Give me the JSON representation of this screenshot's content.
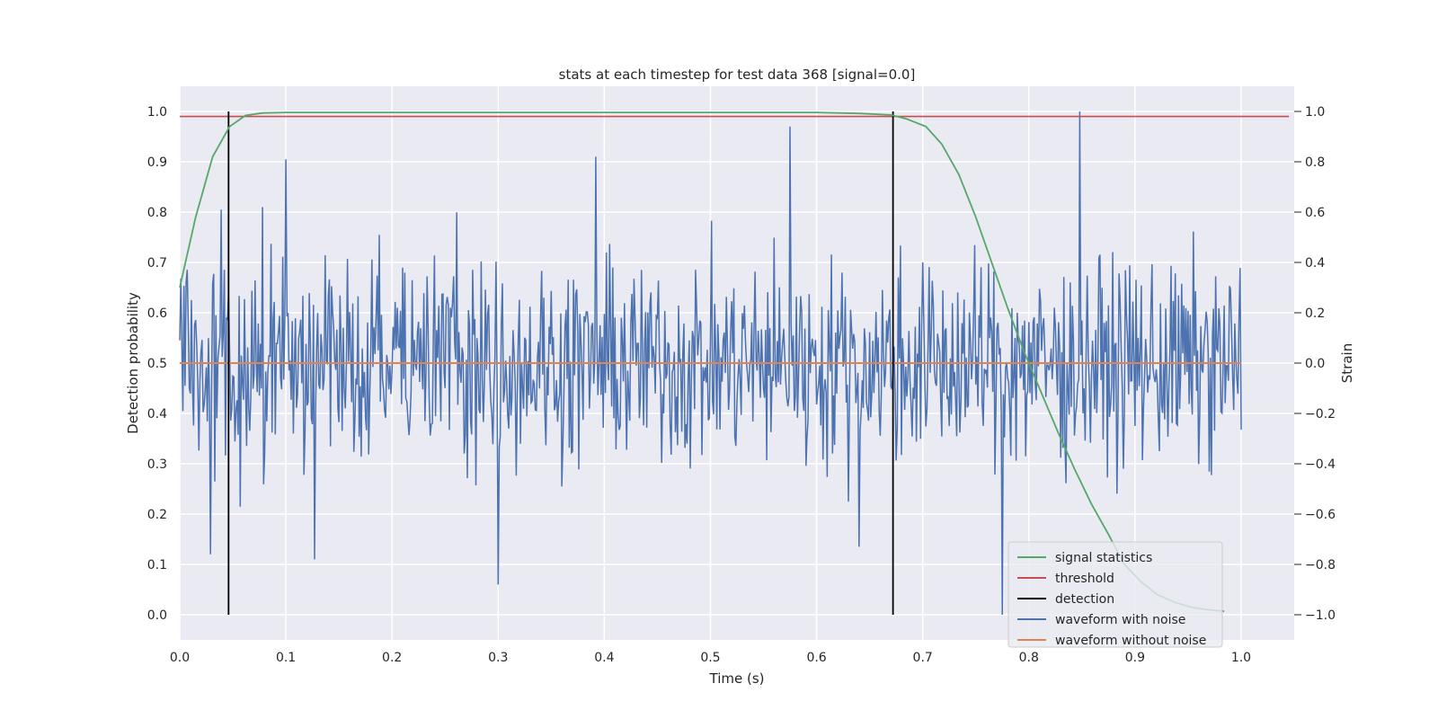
{
  "chart_data": {
    "type": "line",
    "title": "stats at each timestep for test data 368 [signal=0.0]",
    "xlabel": "Time (s)",
    "ylabel_left": "Detection probability",
    "ylabel_right": "Strain",
    "xlim": [
      0.0,
      1.05
    ],
    "ylim_left": [
      -0.05,
      1.05
    ],
    "ylim_right": [
      -1.1,
      1.1
    ],
    "xticks": [
      "0.0",
      "0.1",
      "0.2",
      "0.3",
      "0.4",
      "0.5",
      "0.6",
      "0.7",
      "0.8",
      "0.9",
      "1.0"
    ],
    "yticks_left": [
      "0.0",
      "0.1",
      "0.2",
      "0.3",
      "0.4",
      "0.5",
      "0.6",
      "0.7",
      "0.8",
      "0.9",
      "1.0"
    ],
    "yticks_right": [
      "−1.0",
      "−0.8",
      "−0.6",
      "−0.4",
      "−0.2",
      "0.0",
      "0.2",
      "0.4",
      "0.6",
      "0.8",
      "1.0"
    ],
    "grid": true,
    "background": "#eaeaf2",
    "legend_position": "lower-right",
    "signal_statistics": {
      "name": "signal statistics",
      "color": "#55a868",
      "axis": "left",
      "x": [
        0.0,
        0.015,
        0.031,
        0.047,
        0.062,
        0.078,
        0.1,
        0.2,
        0.3,
        0.4,
        0.5,
        0.6,
        0.64,
        0.67,
        0.685,
        0.703,
        0.718,
        0.734,
        0.75,
        0.765,
        0.78,
        0.796,
        0.812,
        0.828,
        0.843,
        0.859,
        0.875,
        0.89,
        0.906,
        0.921,
        0.937,
        0.953,
        0.968,
        0.984
      ],
      "values": [
        0.65,
        0.79,
        0.91,
        0.97,
        0.992,
        0.997,
        0.998,
        0.998,
        0.998,
        0.998,
        0.998,
        0.998,
        0.996,
        0.993,
        0.985,
        0.97,
        0.935,
        0.875,
        0.79,
        0.7,
        0.61,
        0.52,
        0.44,
        0.36,
        0.29,
        0.22,
        0.16,
        0.1,
        0.065,
        0.04,
        0.025,
        0.015,
        0.01,
        0.007
      ]
    },
    "threshold": {
      "name": "threshold",
      "color": "#c44e52",
      "axis": "left",
      "value": 0.99,
      "x_range": [
        0.0,
        1.045
      ]
    },
    "detection": {
      "name": "detection",
      "color": "#000000",
      "axis": "left",
      "x": [
        0.046,
        0.672
      ],
      "y_range": [
        0.0,
        1.0
      ]
    },
    "waveform_with_noise": {
      "name": "waveform with noise",
      "color": "#4c72b0",
      "axis": "right",
      "x_range": [
        0.0,
        1.0
      ],
      "n_points": 1001,
      "value_range": [
        -1.0,
        1.0
      ],
      "notable_points": [
        {
          "x": 0.029,
          "y": -0.76
        },
        {
          "x": 0.039,
          "y": 0.61
        },
        {
          "x": 0.078,
          "y": 0.62
        },
        {
          "x": 0.1,
          "y": 0.81
        },
        {
          "x": 0.127,
          "y": -0.78
        },
        {
          "x": 0.3,
          "y": -0.88
        },
        {
          "x": 0.392,
          "y": 0.82
        },
        {
          "x": 0.575,
          "y": 0.94
        },
        {
          "x": 0.64,
          "y": -0.73
        },
        {
          "x": 0.775,
          "y": -1.0
        },
        {
          "x": 0.848,
          "y": 1.0
        }
      ]
    },
    "waveform_without_noise": {
      "name": "waveform without noise",
      "color": "#dd8452",
      "axis": "right",
      "x_range": [
        0.0,
        1.0
      ],
      "value": 0.0
    },
    "legend": [
      "signal statistics",
      "threshold",
      "detection",
      "waveform with noise",
      "waveform without noise"
    ]
  }
}
